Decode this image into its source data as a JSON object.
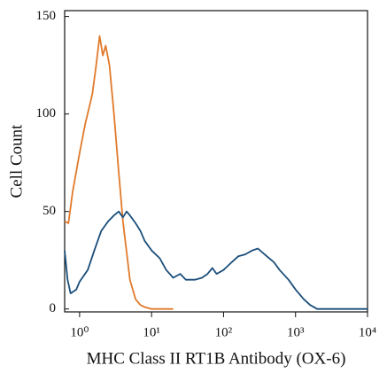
{
  "chart_data": {
    "type": "line",
    "xlabel": "MHC Class II RT1B Antibody (OX-6)",
    "ylabel": "Cell Count",
    "xscale": "log",
    "xlim": [
      0.62,
      10000
    ],
    "xticks": [
      {
        "value": 1,
        "label": "10⁰"
      },
      {
        "value": 10,
        "label": "10¹"
      },
      {
        "value": 100,
        "label": "10²"
      },
      {
        "value": 1000,
        "label": "10³"
      },
      {
        "value": 10000,
        "label": "10⁴"
      }
    ],
    "ylim": [
      -1.5,
      153
    ],
    "yticks": [
      0,
      50,
      100,
      150
    ],
    "series": [
      {
        "color": "#e07a2b",
        "x": [
          0.62,
          0.7,
          0.8,
          1,
          1.2,
          1.5,
          1.7,
          1.9,
          2.1,
          2.3,
          2.6,
          3,
          3.5,
          4,
          5,
          6,
          7,
          8,
          10,
          20
        ],
        "values": [
          45,
          44,
          60,
          80,
          95,
          110,
          125,
          140,
          130,
          135,
          125,
          100,
          70,
          45,
          15,
          5,
          2,
          1,
          0,
          0
        ]
      },
      {
        "color": "#1a4e7a",
        "x": [
          0.62,
          0.68,
          0.75,
          0.9,
          1,
          1.3,
          1.6,
          2,
          2.5,
          3,
          3.5,
          4,
          4.5,
          5,
          6,
          7,
          8,
          10,
          13,
          16,
          20,
          25,
          30,
          40,
          50,
          60,
          70,
          80,
          100,
          130,
          160,
          200,
          250,
          300,
          400,
          500,
          600,
          800,
          1000,
          1300,
          1600,
          2000,
          3000,
          5000,
          10000
        ],
        "values": [
          30,
          15,
          8,
          10,
          14,
          20,
          30,
          40,
          45,
          48,
          50,
          47,
          50,
          48,
          44,
          40,
          35,
          30,
          26,
          20,
          16,
          18,
          15,
          15,
          16,
          18,
          21,
          18,
          20,
          24,
          27,
          28,
          30,
          31,
          27,
          24,
          20,
          15,
          10,
          5,
          2,
          0,
          0,
          0,
          0
        ]
      }
    ]
  }
}
